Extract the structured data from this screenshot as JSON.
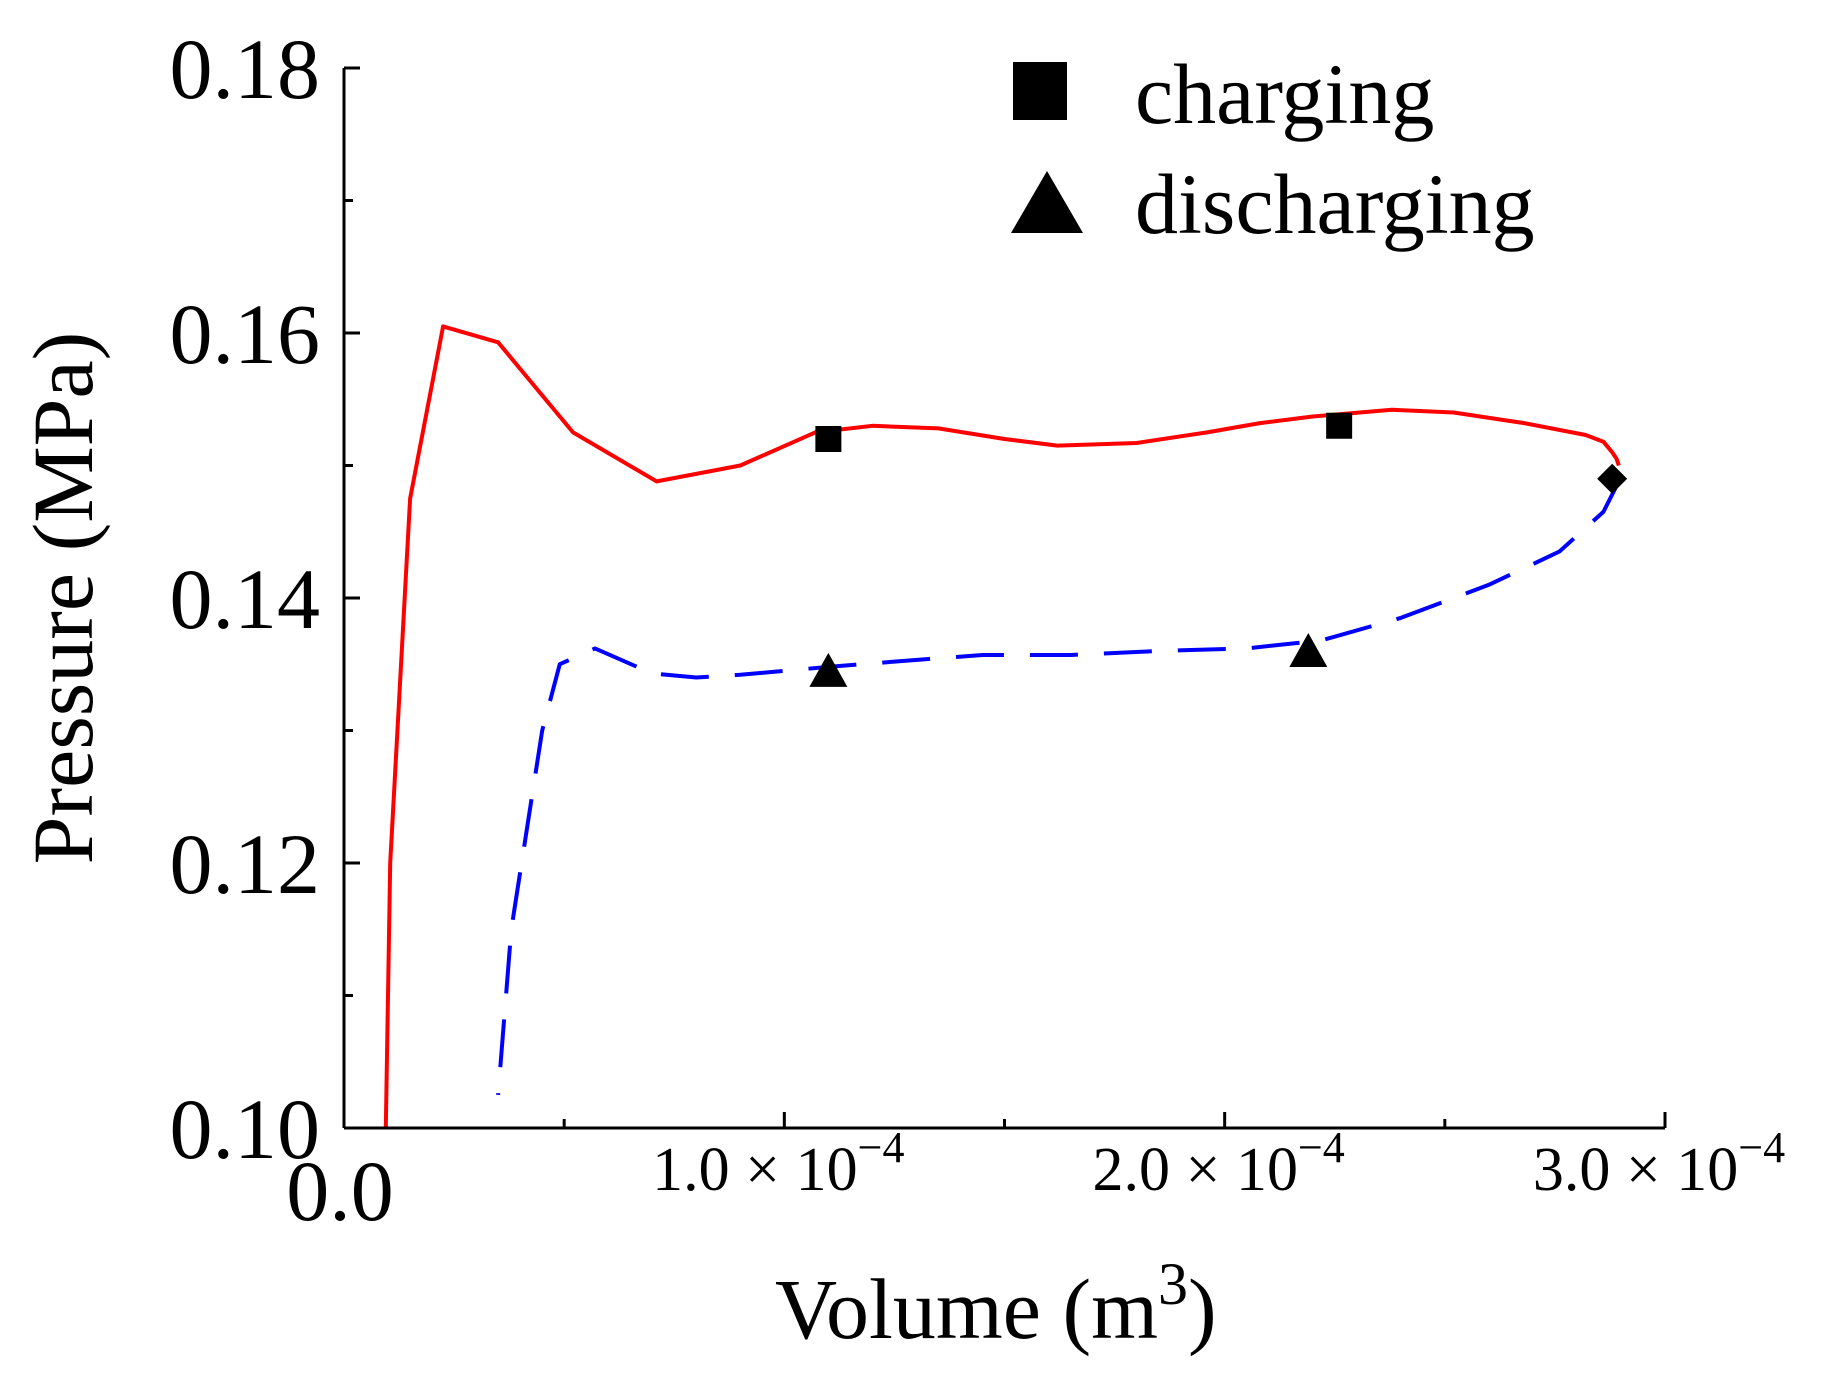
{
  "chart_data": {
    "type": "line",
    "xlabel": "Volume (m",
    "xlabel_sup": "3",
    "xlabel_close": ")",
    "ylabel": "Pressure (MPa)",
    "xlim": [
      0,
      0.0003
    ],
    "ylim": [
      0.1,
      0.18
    ],
    "x_ticks": [
      {
        "value": 0,
        "label": "0.0",
        "mantissa": "",
        "exponent": ""
      },
      {
        "value": 0.0001,
        "label": "",
        "mantissa": "1.0 × 10",
        "exponent": "−4"
      },
      {
        "value": 0.0002,
        "label": "",
        "mantissa": "2.0 × 10",
        "exponent": "−4"
      },
      {
        "value": 0.0003,
        "label": "",
        "mantissa": "3.0 × 10",
        "exponent": "−4"
      }
    ],
    "y_ticks": [
      {
        "value": 0.1,
        "label": "0.10"
      },
      {
        "value": 0.12,
        "label": "0.12"
      },
      {
        "value": 0.14,
        "label": "0.14"
      },
      {
        "value": 0.16,
        "label": "0.16"
      },
      {
        "value": 0.18,
        "label": "0.18"
      }
    ],
    "grid": false,
    "legend_position": "top-right",
    "series": [
      {
        "key": "charging_curve",
        "color": "#ff0000",
        "style": "solid",
        "x": [
          9.5e-06,
          1.05e-05,
          1.5e-05,
          2.25e-05,
          3.5e-05,
          5.2e-05,
          7.1e-05,
          9e-05,
          0.000107,
          0.00012,
          0.000135,
          0.00015,
          0.000162,
          0.00018,
          0.000196,
          0.000208,
          0.00022,
          0.000238,
          0.000252,
          0.000268,
          0.000282,
          0.000286,
          0.000288,
          0.000289,
          0.0002895
        ],
        "y": [
          0.1,
          0.12,
          0.1475,
          0.1605,
          0.1593,
          0.1525,
          0.1488,
          0.15,
          0.1525,
          0.153,
          0.1528,
          0.152,
          0.1515,
          0.1517,
          0.1525,
          0.1532,
          0.1537,
          0.1542,
          0.154,
          0.1532,
          0.1523,
          0.1518,
          0.151,
          0.1505,
          0.15
        ]
      },
      {
        "key": "discharging_curve",
        "color": "#0000ff",
        "style": "dashed",
        "x": [
          0.0002895,
          0.000286,
          0.000276,
          0.00026,
          0.00024,
          0.000222,
          0.000205,
          0.000185,
          0.000165,
          0.000145,
          0.000125,
          0.00011,
          9e-05,
          8e-05,
          7e-05,
          5.7e-05,
          4.9e-05,
          4.5e-05,
          3.8e-05,
          3.5e-05
        ],
        "y": [
          0.1488,
          0.1465,
          0.1435,
          0.141,
          0.1385,
          0.1368,
          0.1362,
          0.136,
          0.1357,
          0.1357,
          0.1352,
          0.1348,
          0.1342,
          0.134,
          0.1343,
          0.1362,
          0.135,
          0.13,
          0.115,
          0.1025
        ]
      }
    ],
    "markers": [
      {
        "shape": "square",
        "series": "charging",
        "x": 0.00011,
        "y": 0.152
      },
      {
        "shape": "square",
        "series": "charging",
        "x": 0.000226,
        "y": 0.153
      },
      {
        "shape": "triangle",
        "series": "discharging",
        "x": 0.00011,
        "y": 0.1345
      },
      {
        "shape": "triangle",
        "series": "discharging",
        "x": 0.000219,
        "y": 0.136
      },
      {
        "shape": "diamond",
        "series": "",
        "x": 0.000288,
        "y": 0.149
      }
    ],
    "legend": [
      {
        "label": "charging",
        "marker": "square"
      },
      {
        "label": "discharging",
        "marker": "triangle"
      }
    ]
  }
}
